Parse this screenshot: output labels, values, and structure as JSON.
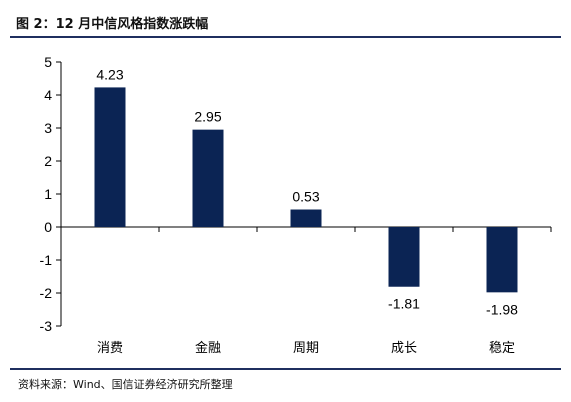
{
  "figure": {
    "title": "图 2：12 月中信风格指数涨跌幅",
    "source": "资料来源：Wind、国信证券经济研究所整理"
  },
  "colors": {
    "bar": "#0b2454",
    "axis": "#000000",
    "rule": "#1f2f5f"
  },
  "chart_data": {
    "type": "bar",
    "title": "",
    "xlabel": "",
    "ylabel": "",
    "categories": [
      "消费",
      "金融",
      "周期",
      "成长",
      "稳定"
    ],
    "values": [
      4.23,
      2.95,
      0.53,
      -1.81,
      -1.98
    ],
    "value_labels": [
      "4.23",
      "2.95",
      "0.53",
      "-1.81",
      "-1.98"
    ],
    "ylim": [
      -3,
      5
    ],
    "yticks": [
      5,
      4,
      3,
      2,
      1,
      0,
      -1,
      -2,
      -3
    ],
    "grid": false,
    "legend": "none"
  }
}
